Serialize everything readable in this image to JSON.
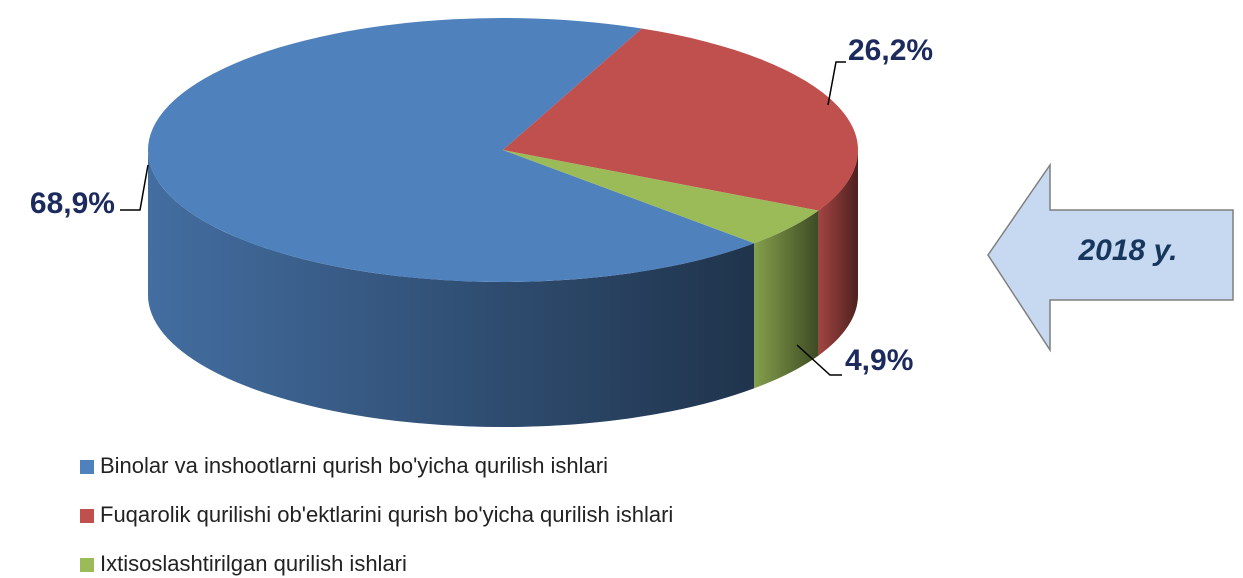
{
  "chart_data": {
    "type": "pie",
    "categories": [
      "Binolar va inshootlarni qurish bo'yicha qurilish ishlari",
      "Fuqarolik qurilishi ob'ektlarini qurish bo'yicha qurilish ishlari",
      "Ixtisoslashtirilgan qurilish ishlari"
    ],
    "values": [
      68.9,
      26.2,
      4.9
    ],
    "value_labels": [
      "68,9%",
      "26,2%",
      "4,9%"
    ],
    "colors": [
      "#4f81bd",
      "#c0504d",
      "#9bbb59"
    ],
    "annotation": "2018 y.",
    "legend": "bottom"
  }
}
